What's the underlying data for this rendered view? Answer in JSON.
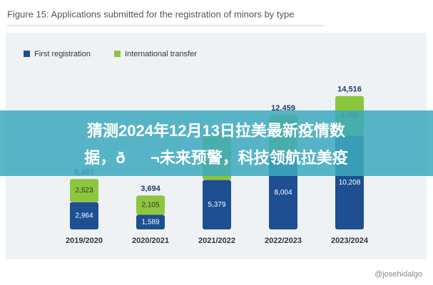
{
  "figure_title": "Figure 15: Applications submitted for the registration of minors by type",
  "chart_data": {
    "type": "stacked_bar",
    "categories": [
      "2019/2020",
      "2020/2021",
      "2021/2022",
      "2022/2023",
      "2023/2024"
    ],
    "series": [
      {
        "name": "First registration",
        "color": "#1d4f91",
        "values": [
          2964,
          1589,
          5379,
          8004,
          10208
        ],
        "value_labels": [
          "2,964",
          "1,589",
          "5,379",
          "8,004",
          "10,208"
        ]
      },
      {
        "name": "International transfer",
        "color": "#8cc63e",
        "values": [
          2523,
          2105,
          5100,
          4455,
          4308
        ],
        "value_labels": [
          "2,523",
          "2,105",
          null,
          null,
          "4,308"
        ]
      }
    ],
    "total_labels": [
      "5,487",
      "3,694",
      null,
      "12,459",
      "14,516"
    ],
    "ylim": [
      0,
      15500
    ]
  },
  "banner": {
    "lines": [
      "猜测2024年12月13日拉美最新疫情数",
      "据，ð¬未来预警，科技领航拉美疫"
    ]
  },
  "watermark": "@josehidalgo"
}
